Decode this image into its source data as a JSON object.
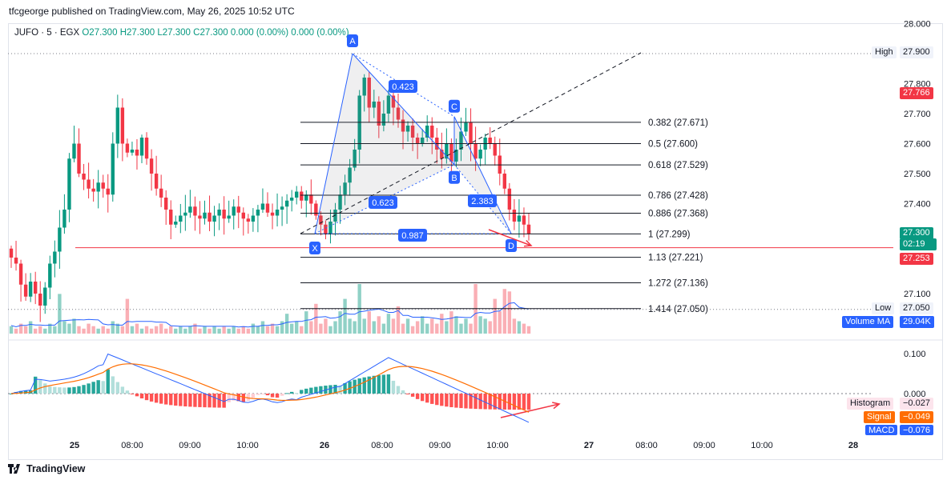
{
  "publisher_line": "tfcgeorge published on TradingView.com, May 26, 2025 10:52 UTC",
  "symbol": {
    "name": "JUFO · 5 · EGX",
    "open": "O27.300",
    "high": "H27.300",
    "low": "L27.300",
    "close": "C27.300",
    "change": "0.000 (0.00%)",
    "volume_change": "0.000 (0.00%)"
  },
  "colors": {
    "up": "#089981",
    "down": "#f23645",
    "pattern_line": "#2962ff",
    "badge": "#2962ff",
    "arrow": "#f23645",
    "macd_line": "#2962ff",
    "signal_line": "#ff6d00",
    "volume_ma": "#2962ff"
  },
  "price_axis": {
    "ticks": [
      "28.000",
      "27.800",
      "27.700",
      "27.600",
      "27.500",
      "27.400",
      "27.100"
    ],
    "high_label": "High",
    "high_value": "27.900",
    "low_label": "Low",
    "low_value": "27.050",
    "marker_red_1": "27.766",
    "current_price": "27.300",
    "countdown": "02:19",
    "marker_red_2": "27.253",
    "volume_ma_label": "Volume MA",
    "volume_ma_value": "29.04K"
  },
  "macd_axis": {
    "ticks": [
      "0.100",
      "0.000"
    ],
    "histogram_label": "Histogram",
    "histogram_value": "−0.027",
    "signal_label": "Signal",
    "signal_value": "−0.049",
    "macd_label": "MACD",
    "macd_value": "−0.076"
  },
  "time_axis": {
    "labels": [
      "25",
      "08:00",
      "09:00",
      "10:00",
      "26",
      "08:00",
      "09:00",
      "10:00",
      "27",
      "08:00",
      "09:00",
      "10:00",
      "28"
    ]
  },
  "fib_levels": [
    {
      "label": "0.382 (27.671)",
      "price": 27.671
    },
    {
      "label": "0.5 (27.600)",
      "price": 27.6
    },
    {
      "label": "0.618 (27.529)",
      "price": 27.529
    },
    {
      "label": "0.786 (27.428)",
      "price": 27.428
    },
    {
      "label": "0.886 (27.368)",
      "price": 27.368
    },
    {
      "label": "1 (27.299)",
      "price": 27.299
    },
    {
      "label": "1.13 (27.221)",
      "price": 27.221
    },
    {
      "label": "1.272 (27.136)",
      "price": 27.136
    },
    {
      "label": "1.414 (27.050)",
      "price": 27.05
    }
  ],
  "pattern": {
    "points": [
      {
        "label": "X",
        "price": 27.3
      },
      {
        "label": "A",
        "price": 27.9
      },
      {
        "label": "B",
        "price": 27.53
      },
      {
        "label": "C",
        "price": 27.69
      },
      {
        "label": "D",
        "price": 27.3
      }
    ],
    "ratios": [
      "0.423",
      "0.623",
      "2.383",
      "0.987"
    ]
  },
  "chart_data": {
    "type": "candlestick",
    "symbol": "JUFO",
    "interval": "5",
    "exchange": "EGX",
    "price_range": [
      27.0,
      28.0
    ],
    "note_candles": "approximate 5-minute closes read from chart",
    "closes": [
      27.22,
      27.2,
      27.13,
      27.09,
      27.14,
      27.1,
      27.06,
      27.12,
      27.2,
      27.24,
      27.32,
      27.38,
      27.55,
      27.6,
      27.5,
      27.48,
      27.45,
      27.44,
      27.47,
      27.45,
      27.43,
      27.6,
      27.72,
      27.6,
      27.57,
      27.58,
      27.56,
      27.62,
      27.55,
      27.5,
      27.45,
      27.42,
      27.38,
      27.33,
      27.34,
      27.36,
      27.37,
      27.39,
      27.36,
      27.35,
      27.37,
      27.34,
      27.36,
      27.38,
      27.35,
      27.36,
      27.39,
      27.37,
      27.35,
      27.34,
      27.36,
      27.38,
      27.4,
      27.37,
      27.36,
      27.38,
      27.39,
      27.41,
      27.42,
      27.44,
      27.41,
      27.43,
      27.4,
      27.36,
      27.33,
      27.3,
      27.34,
      27.38,
      27.43,
      27.47,
      27.52,
      27.58,
      27.76,
      27.82,
      27.72,
      27.74,
      27.66,
      27.7,
      27.76,
      27.72,
      27.68,
      27.64,
      27.66,
      27.62,
      27.6,
      27.62,
      27.66,
      27.62,
      27.58,
      27.55,
      27.6,
      27.54,
      27.58,
      27.64,
      27.67,
      27.6,
      27.55,
      27.58,
      27.62,
      27.6,
      27.56,
      27.5,
      27.45,
      27.38,
      27.34,
      27.36,
      27.33,
      27.3
    ],
    "volume_note": "relative bar heights",
    "volume": [
      3,
      2,
      4,
      3,
      5,
      2,
      3,
      2,
      4,
      3,
      16,
      5,
      4,
      6,
      3,
      2,
      4,
      3,
      2,
      3,
      2,
      5,
      4,
      3,
      14,
      3,
      4,
      2,
      3,
      2,
      3,
      4,
      2,
      3,
      2,
      3,
      2,
      3,
      4,
      2,
      3,
      2,
      3,
      2,
      3,
      2,
      3,
      2,
      3,
      2,
      4,
      3,
      5,
      3,
      4,
      3,
      5,
      8,
      4,
      5,
      3,
      9,
      5,
      12,
      4,
      6,
      3,
      5,
      9,
      14,
      6,
      5,
      20,
      6,
      9,
      5,
      7,
      4,
      8,
      6,
      11,
      4,
      6,
      3,
      5,
      7,
      4,
      6,
      4,
      8,
      5,
      9,
      7,
      4,
      6,
      4,
      20,
      7,
      6,
      5,
      14,
      9,
      18,
      17,
      6,
      5,
      4,
      3
    ],
    "macd": {
      "macd_range": [
        -0.09,
        0.13
      ],
      "zero_line": 0.0,
      "last_histogram": -0.027,
      "last_signal": -0.049,
      "last_macd": -0.076
    }
  }
}
